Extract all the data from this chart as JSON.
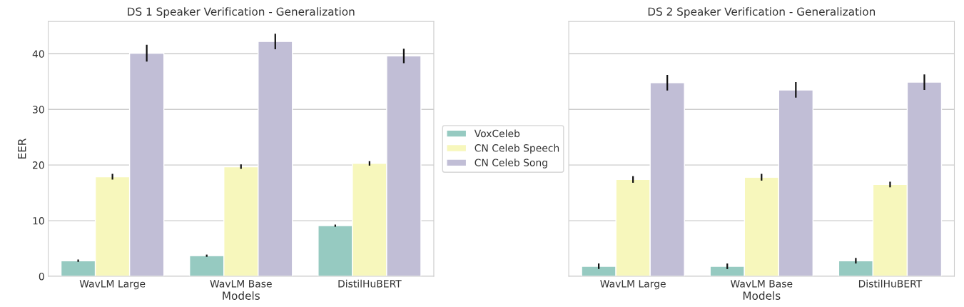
{
  "chart_data": [
    {
      "type": "bar",
      "title": "DS 1 Speaker Verification - Generalization",
      "xlabel": "Models",
      "ylabel": "EER",
      "categories": [
        "WavLM Large",
        "WavLM Base",
        "DistilHuBERT"
      ],
      "series": [
        {
          "name": "VoxCeleb",
          "color": "#96cac1",
          "values": [
            2.8,
            3.7,
            9.1
          ],
          "errors": [
            0.2,
            0.2,
            0.2
          ]
        },
        {
          "name": "CN Celeb Speech",
          "color": "#f7f7bc",
          "values": [
            17.9,
            19.7,
            20.3
          ],
          "errors": [
            0.5,
            0.4,
            0.4
          ]
        },
        {
          "name": "CN Celeb Song",
          "color": "#c1bed6",
          "values": [
            40.1,
            42.2,
            39.6
          ],
          "errors": [
            1.5,
            1.4,
            1.3
          ]
        }
      ],
      "ylim": [
        0,
        45.8
      ],
      "yticks": [
        0,
        10,
        20,
        30,
        40
      ],
      "grid": "y",
      "legend": "right"
    },
    {
      "type": "bar",
      "title": "DS 2 Speaker Verification - Generalization",
      "xlabel": "Models",
      "categories": [
        "WavLM Large",
        "WavLM Base",
        "DistilHuBERT"
      ],
      "series": [
        {
          "color": "#96cac1",
          "values": [
            1.8,
            1.8,
            2.8
          ],
          "errors": [
            0.5,
            0.5,
            0.5
          ]
        },
        {
          "color": "#f7f7bc",
          "values": [
            17.4,
            17.8,
            16.5
          ],
          "errors": [
            0.6,
            0.6,
            0.5
          ]
        },
        {
          "color": "#c1bed6",
          "values": [
            34.8,
            33.5,
            34.9
          ],
          "errors": [
            1.4,
            1.4,
            1.4
          ]
        }
      ],
      "ylim": [
        0,
        45.8
      ],
      "yticks": [
        0,
        10,
        20,
        30,
        40
      ],
      "grid": "y",
      "tick_labels": "x"
    }
  ]
}
